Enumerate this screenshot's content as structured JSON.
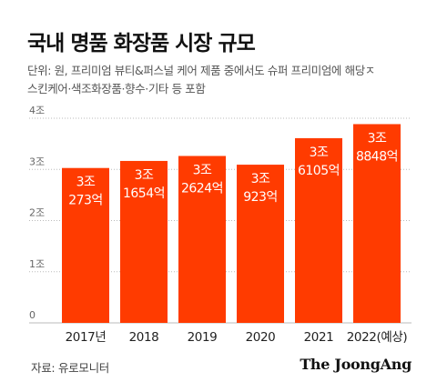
{
  "title": "국내 명품 화장품 시장 규모",
  "subtitle_lines": [
    "단위: 원, 프리미엄 뷰티&퍼스널 케어 제품 중에서도 슈퍼 프리미엄에 해당ㅈ",
    "스킨케어·색조화장품·향수·기타 등 포함"
  ],
  "source": "자료: 유로모니터",
  "brand": "The JoongAng",
  "colors": {
    "bar": "#ff3b00",
    "bar_label": "#ffffff",
    "grid": "#bbbbbb"
  },
  "chart_data": {
    "type": "bar",
    "categories": [
      "2017년",
      "2018",
      "2019",
      "2020",
      "2021",
      "2022(예상)"
    ],
    "values": [
      3.0273,
      3.1654,
      3.2624,
      3.0923,
      3.6105,
      3.8848
    ],
    "value_unit": "조 원",
    "data_labels": [
      [
        "3조",
        "273억"
      ],
      [
        "3조",
        "1654억"
      ],
      [
        "3조",
        "2624억"
      ],
      [
        "3조",
        "923억"
      ],
      [
        "3조",
        "6105억"
      ],
      [
        "3조",
        "8848억"
      ]
    ],
    "yticks": [
      0,
      1,
      2,
      3,
      4
    ],
    "ytick_labels": [
      "0",
      "1조",
      "2조",
      "3조",
      "4조"
    ],
    "ylim": [
      0,
      4
    ],
    "grid": true
  }
}
